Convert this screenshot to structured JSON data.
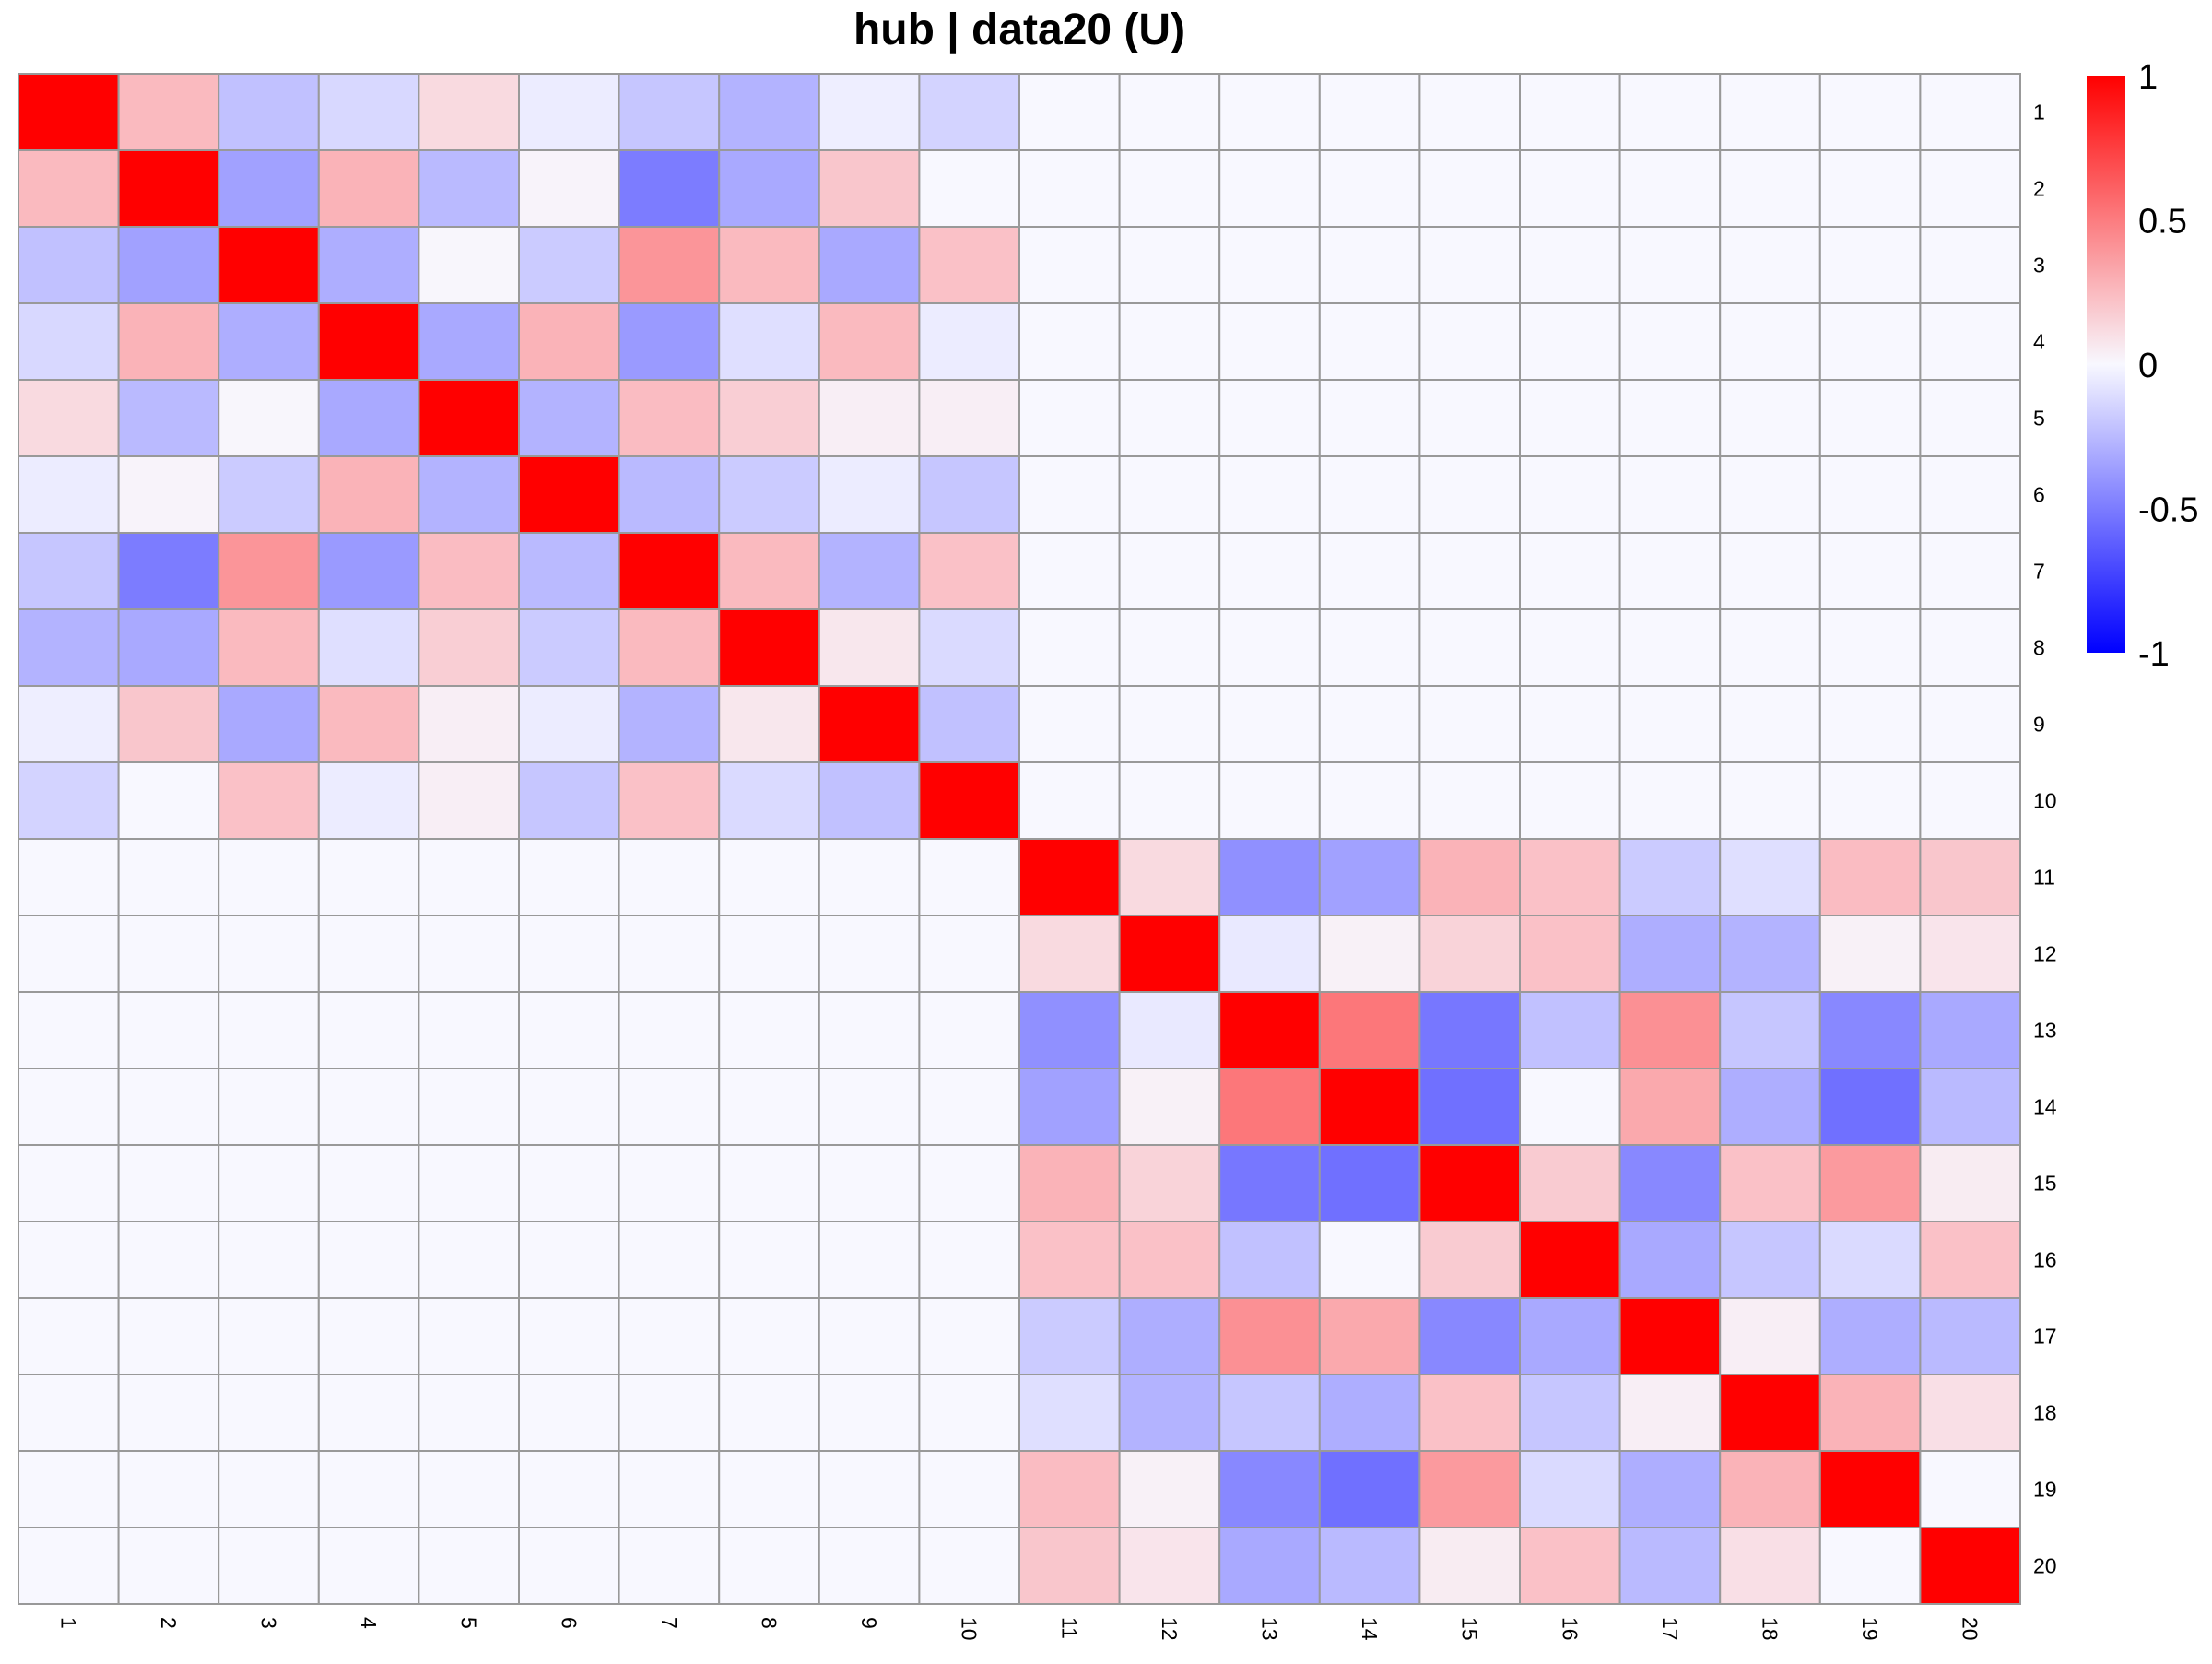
{
  "chart_data": {
    "type": "heatmap",
    "title": "hub | data20 (U)",
    "xlabel": "",
    "ylabel": "",
    "row_labels": [
      "1",
      "2",
      "3",
      "4",
      "5",
      "6",
      "7",
      "8",
      "9",
      "10",
      "11",
      "12",
      "13",
      "14",
      "15",
      "16",
      "17",
      "18",
      "19",
      "20"
    ],
    "col_labels": [
      "1",
      "2",
      "3",
      "4",
      "5",
      "6",
      "7",
      "8",
      "9",
      "10",
      "11",
      "12",
      "13",
      "14",
      "15",
      "16",
      "17",
      "18",
      "19",
      "20"
    ],
    "color_scale": {
      "min": -1,
      "max": 1,
      "low_color": "#0000FF",
      "mid_color": "#F8F8FF",
      "high_color": "#FF0000",
      "ticks": [
        1,
        0.5,
        0,
        -0.5,
        -1
      ],
      "tick_labels": [
        "1",
        "0.5",
        "0",
        "-0.5",
        "-1"
      ]
    },
    "grid_color": "#999999",
    "values": [
      [
        1.0,
        0.25,
        -0.22,
        -0.13,
        0.12,
        -0.05,
        -0.2,
        -0.28,
        -0.04,
        -0.15,
        0,
        0,
        0,
        0,
        0,
        0,
        0,
        0,
        0,
        0
      ],
      [
        0.25,
        1.0,
        -0.35,
        0.28,
        -0.25,
        0.02,
        -0.5,
        -0.32,
        0.2,
        0.0,
        0,
        0,
        0,
        0,
        0,
        0,
        0,
        0,
        0,
        0
      ],
      [
        -0.22,
        -0.35,
        1.0,
        -0.3,
        0.01,
        -0.18,
        0.4,
        0.25,
        -0.32,
        0.22,
        0,
        0,
        0,
        0,
        0,
        0,
        0,
        0,
        0,
        0
      ],
      [
        -0.13,
        0.28,
        -0.3,
        1.0,
        -0.32,
        0.28,
        -0.38,
        -0.1,
        0.25,
        -0.05,
        0,
        0,
        0,
        0,
        0,
        0,
        0,
        0,
        0,
        0
      ],
      [
        0.12,
        -0.25,
        0.01,
        -0.32,
        1.0,
        -0.28,
        0.24,
        0.17,
        0.04,
        0.04,
        0,
        0,
        0,
        0,
        0,
        0,
        0,
        0,
        0,
        0
      ],
      [
        -0.05,
        0.02,
        -0.18,
        0.28,
        -0.28,
        1.0,
        -0.25,
        -0.18,
        -0.05,
        -0.2,
        0,
        0,
        0,
        0,
        0,
        0,
        0,
        0,
        0,
        0
      ],
      [
        -0.2,
        -0.5,
        0.4,
        -0.38,
        0.24,
        -0.25,
        1.0,
        0.25,
        -0.28,
        0.22,
        0,
        0,
        0,
        0,
        0,
        0,
        0,
        0,
        0,
        0
      ],
      [
        -0.28,
        -0.32,
        0.25,
        -0.1,
        0.17,
        -0.18,
        0.25,
        1.0,
        0.07,
        -0.12,
        0,
        0,
        0,
        0,
        0,
        0,
        0,
        0,
        0,
        0
      ],
      [
        -0.04,
        0.2,
        -0.32,
        0.25,
        0.04,
        -0.05,
        -0.28,
        0.07,
        1.0,
        -0.22,
        0,
        0,
        0,
        0,
        0,
        0,
        0,
        0,
        0,
        0
      ],
      [
        -0.15,
        0.0,
        0.22,
        -0.05,
        0.04,
        -0.2,
        0.22,
        -0.12,
        -0.22,
        1.0,
        0,
        0,
        0,
        0,
        0,
        0,
        0,
        0,
        0,
        0
      ],
      [
        0,
        0,
        0,
        0,
        0,
        0,
        0,
        0,
        0,
        0,
        1.0,
        0.12,
        -0.42,
        -0.35,
        0.28,
        0.22,
        -0.18,
        -0.1,
        0.24,
        0.2
      ],
      [
        0,
        0,
        0,
        0,
        0,
        0,
        0,
        0,
        0,
        0,
        0.12,
        1.0,
        -0.06,
        0.03,
        0.15,
        0.22,
        -0.3,
        -0.28,
        0.03,
        0.08
      ],
      [
        0,
        0,
        0,
        0,
        0,
        0,
        0,
        0,
        0,
        0,
        -0.42,
        -0.06,
        1.0,
        0.52,
        -0.52,
        -0.22,
        0.42,
        -0.2,
        -0.45,
        -0.32
      ],
      [
        0,
        0,
        0,
        0,
        0,
        0,
        0,
        0,
        0,
        0,
        -0.35,
        0.03,
        0.52,
        1.0,
        -0.55,
        0.0,
        0.32,
        -0.3,
        -0.55,
        -0.25
      ],
      [
        0,
        0,
        0,
        0,
        0,
        0,
        0,
        0,
        0,
        0,
        0.28,
        0.15,
        -0.52,
        -0.55,
        1.0,
        0.18,
        -0.45,
        0.22,
        0.38,
        0.05
      ],
      [
        0,
        0,
        0,
        0,
        0,
        0,
        0,
        0,
        0,
        0,
        0.22,
        0.22,
        -0.22,
        0.0,
        0.18,
        1.0,
        -0.32,
        -0.2,
        -0.12,
        0.22
      ],
      [
        0,
        0,
        0,
        0,
        0,
        0,
        0,
        0,
        0,
        0,
        -0.18,
        -0.3,
        0.42,
        0.32,
        -0.45,
        -0.32,
        1.0,
        0.04,
        -0.3,
        -0.25
      ],
      [
        0,
        0,
        0,
        0,
        0,
        0,
        0,
        0,
        0,
        0,
        -0.1,
        -0.28,
        -0.2,
        -0.3,
        0.22,
        -0.2,
        0.04,
        1.0,
        0.28,
        0.1
      ],
      [
        0,
        0,
        0,
        0,
        0,
        0,
        0,
        0,
        0,
        0,
        0.24,
        0.03,
        -0.45,
        -0.55,
        0.38,
        -0.12,
        -0.3,
        0.28,
        1.0,
        0.0
      ],
      [
        0,
        0,
        0,
        0,
        0,
        0,
        0,
        0,
        0,
        0,
        0.2,
        0.08,
        -0.32,
        -0.25,
        0.05,
        0.22,
        -0.25,
        0.1,
        0.0,
        1.0
      ]
    ]
  }
}
